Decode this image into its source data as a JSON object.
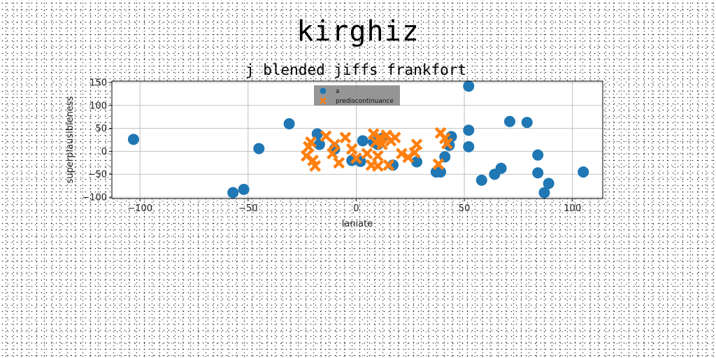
{
  "suptitle": "kirghiz",
  "chart_data": {
    "type": "scatter",
    "title": "j blended jiffs frankfort",
    "xlabel": "laniate",
    "ylabel": "superplausibleness",
    "xlim": [
      -113,
      114
    ],
    "ylim": [
      -103,
      153
    ],
    "xticks": [
      -100,
      -50,
      0,
      50,
      100
    ],
    "yticks": [
      -100,
      -50,
      0,
      50,
      100,
      150
    ],
    "grid": true,
    "legend_position": "top-center",
    "series": [
      {
        "name": "a",
        "marker": "circle",
        "color": "#1f77b4",
        "points": [
          [
            -103,
            26
          ],
          [
            -57,
            -90
          ],
          [
            -52,
            -83
          ],
          [
            -45,
            6
          ],
          [
            -31,
            60
          ],
          [
            -18,
            38
          ],
          [
            -17,
            15
          ],
          [
            -10,
            5
          ],
          [
            -2,
            -20
          ],
          [
            2,
            -22
          ],
          [
            3,
            23
          ],
          [
            8,
            20
          ],
          [
            10,
            15
          ],
          [
            12,
            28
          ],
          [
            17,
            -30
          ],
          [
            28,
            -23
          ],
          [
            37,
            -45
          ],
          [
            39,
            -45
          ],
          [
            41,
            -12
          ],
          [
            43,
            13
          ],
          [
            44,
            32
          ],
          [
            52,
            10
          ],
          [
            52,
            46
          ],
          [
            52,
            142
          ],
          [
            58,
            -63
          ],
          [
            64,
            -50
          ],
          [
            67,
            -37
          ],
          [
            71,
            65
          ],
          [
            79,
            63
          ],
          [
            84,
            -8
          ],
          [
            84,
            -47
          ],
          [
            87,
            -90
          ],
          [
            89,
            -70
          ],
          [
            105,
            -45
          ]
        ]
      },
      {
        "name": "prediscontinuance",
        "marker": "x",
        "color": "#ff7f0e",
        "points": [
          [
            -23,
            -10
          ],
          [
            -22,
            10
          ],
          [
            -21,
            20
          ],
          [
            -20,
            -20
          ],
          [
            -19,
            -32
          ],
          [
            -14,
            33
          ],
          [
            -11,
            -5
          ],
          [
            -10,
            15
          ],
          [
            -8,
            -25
          ],
          [
            -5,
            30
          ],
          [
            -2,
            5
          ],
          [
            0,
            -15
          ],
          [
            5,
            -5
          ],
          [
            7,
            -30
          ],
          [
            8,
            38
          ],
          [
            9,
            20
          ],
          [
            10,
            -10
          ],
          [
            10,
            -32
          ],
          [
            11,
            30
          ],
          [
            12,
            15
          ],
          [
            14,
            35
          ],
          [
            15,
            -30
          ],
          [
            16,
            23
          ],
          [
            18,
            30
          ],
          [
            21,
            -5
          ],
          [
            24,
            -13
          ],
          [
            27,
            -3
          ],
          [
            28,
            15
          ],
          [
            38,
            -28
          ],
          [
            39,
            40
          ],
          [
            41,
            28
          ],
          [
            42,
            17
          ]
        ]
      }
    ]
  }
}
